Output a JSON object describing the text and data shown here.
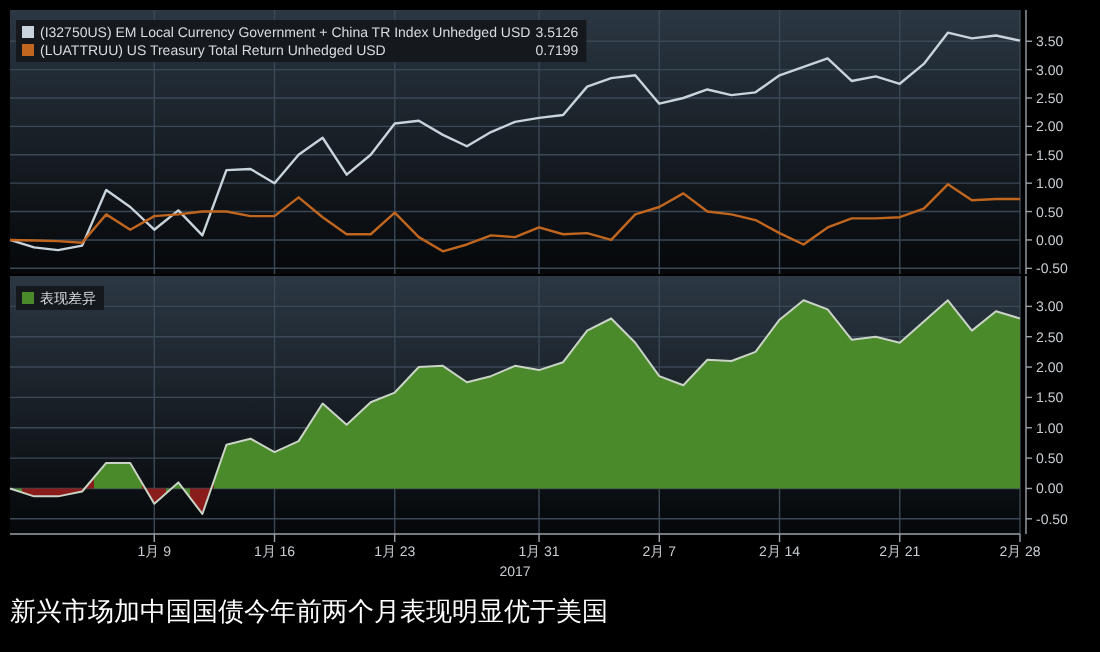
{
  "chart_data": [
    {
      "type": "line",
      "categories": [
        null,
        null,
        null,
        null,
        null,
        null,
        null,
        null,
        null,
        null,
        null,
        null,
        null,
        null,
        null,
        null,
        null,
        null,
        null,
        null,
        null,
        null,
        null,
        null,
        null,
        null,
        null,
        null,
        null,
        null,
        null,
        null,
        null,
        null,
        null,
        null,
        null,
        null,
        null,
        null,
        null,
        null,
        null
      ],
      "series": [
        {
          "name": "(I32750US) EM Local Currency Government + China TR Index Unhedged USD",
          "color": "#c9d3db",
          "values": [
            0,
            -0.13,
            -0.18,
            -0.1,
            0.88,
            0.58,
            0.18,
            0.52,
            0.08,
            1.23,
            1.25,
            1.0,
            1.5,
            1.8,
            1.15,
            1.5,
            2.05,
            2.1,
            1.85,
            1.65,
            1.9,
            2.08,
            2.15,
            2.2,
            2.7,
            2.85,
            2.9,
            2.4,
            2.5,
            2.65,
            2.55,
            2.6,
            2.9,
            3.05,
            3.2,
            2.8,
            2.88,
            2.75,
            3.1,
            3.65,
            3.55,
            3.6,
            3.51
          ]
        },
        {
          "name": "(LUATTRUU) US Treasury Total Return Unhedged USD",
          "color": "#c0661f",
          "values": [
            0,
            -0.01,
            -0.02,
            -0.05,
            0.45,
            0.18,
            0.42,
            0.45,
            0.5,
            0.5,
            0.42,
            0.42,
            0.75,
            0.4,
            0.1,
            0.1,
            0.48,
            0.05,
            -0.2,
            -0.08,
            0.08,
            0.05,
            0.22,
            0.1,
            0.12,
            0.0,
            0.45,
            0.58,
            0.82,
            0.5,
            0.45,
            0.35,
            0.12,
            -0.08,
            0.22,
            0.38,
            0.38,
            0.4,
            0.55,
            0.98,
            0.7,
            0.72,
            0.72
          ]
        }
      ],
      "ylim": [
        -0.6,
        4.05
      ],
      "yticks": [
        {
          "value": -0.5,
          "label": "-0.50"
        },
        {
          "value": 0,
          "label": "0.00"
        },
        {
          "value": 0.5,
          "label": "0.50"
        },
        {
          "value": 1,
          "label": "1.00"
        },
        {
          "value": 1.5,
          "label": "1.50"
        },
        {
          "value": 2,
          "label": "2.00"
        },
        {
          "value": 2.5,
          "label": "2.50"
        },
        {
          "value": 3,
          "label": "3.00"
        },
        {
          "value": 3.5,
          "label": "3.50"
        }
      ],
      "grid": true,
      "legend": "top left",
      "tick_labels": "y",
      "annotations": [
        "3.5126",
        "0.7199"
      ]
    },
    {
      "type": "area",
      "categories": [
        null,
        null,
        null,
        null,
        null,
        null,
        "1月 9",
        null,
        null,
        null,
        null,
        "1月 16",
        null,
        null,
        null,
        null,
        "1月 23",
        null,
        null,
        null,
        null,
        null,
        "1月 31",
        null,
        null,
        null,
        null,
        "2月 7",
        null,
        null,
        null,
        null,
        "2月 14",
        null,
        null,
        null,
        null,
        "2月 21",
        null,
        null,
        null,
        null,
        "2月 28"
      ],
      "series": [
        {
          "name": "表现差异",
          "color": "#4b8a2a",
          "colors": [
            "#4b8a2a",
            "#8b1c1c",
            "#8b1c1c",
            "#8b1c1c",
            "#4b8a2a",
            "#4b8a2a",
            "#8b1c1c",
            "#4b8a2a",
            "#8b1c1c",
            "#4b8a2a",
            "#4b8a2a",
            "#4b8a2a",
            "#4b8a2a",
            "#4b8a2a",
            "#4b8a2a",
            "#4b8a2a",
            "#4b8a2a",
            "#4b8a2a",
            "#4b8a2a",
            "#4b8a2a",
            "#4b8a2a",
            "#4b8a2a",
            "#4b8a2a",
            "#4b8a2a",
            "#4b8a2a",
            "#4b8a2a",
            "#4b8a2a",
            "#4b8a2a",
            "#4b8a2a",
            "#4b8a2a",
            "#4b8a2a",
            "#4b8a2a",
            "#4b8a2a",
            "#4b8a2a",
            "#4b8a2a",
            "#4b8a2a",
            "#4b8a2a",
            "#4b8a2a",
            "#4b8a2a",
            "#4b8a2a",
            "#4b8a2a",
            "#4b8a2a",
            "#4b8a2a"
          ],
          "values": [
            0,
            -0.13,
            -0.13,
            -0.05,
            0.42,
            0.42,
            -0.25,
            0.1,
            -0.42,
            0.72,
            0.82,
            0.6,
            0.78,
            1.4,
            1.05,
            1.42,
            1.58,
            2.0,
            2.02,
            1.75,
            1.85,
            2.02,
            1.95,
            2.08,
            2.6,
            2.8,
            2.4,
            1.85,
            1.7,
            2.12,
            2.1,
            2.25,
            2.78,
            3.1,
            2.95,
            2.45,
            2.5,
            2.4,
            2.75,
            3.1,
            2.6,
            2.92,
            2.8
          ]
        }
      ],
      "ylim": [
        -0.75,
        3.5
      ],
      "yticks": [
        {
          "value": -0.5,
          "label": "-0.50"
        },
        {
          "value": 0,
          "label": "0.00"
        },
        {
          "value": 0.5,
          "label": "0.50"
        },
        {
          "value": 1,
          "label": "1.00"
        },
        {
          "value": 1.5,
          "label": "1.50"
        },
        {
          "value": 2,
          "label": "2.00"
        },
        {
          "value": 2.5,
          "label": "2.50"
        },
        {
          "value": 3,
          "label": "3.00"
        }
      ],
      "grid": true,
      "legend": "top left",
      "xlabel": "2017",
      "annotations": [
        "新兴市场加中国国债今年前两个月表现明显优于美国"
      ]
    }
  ]
}
